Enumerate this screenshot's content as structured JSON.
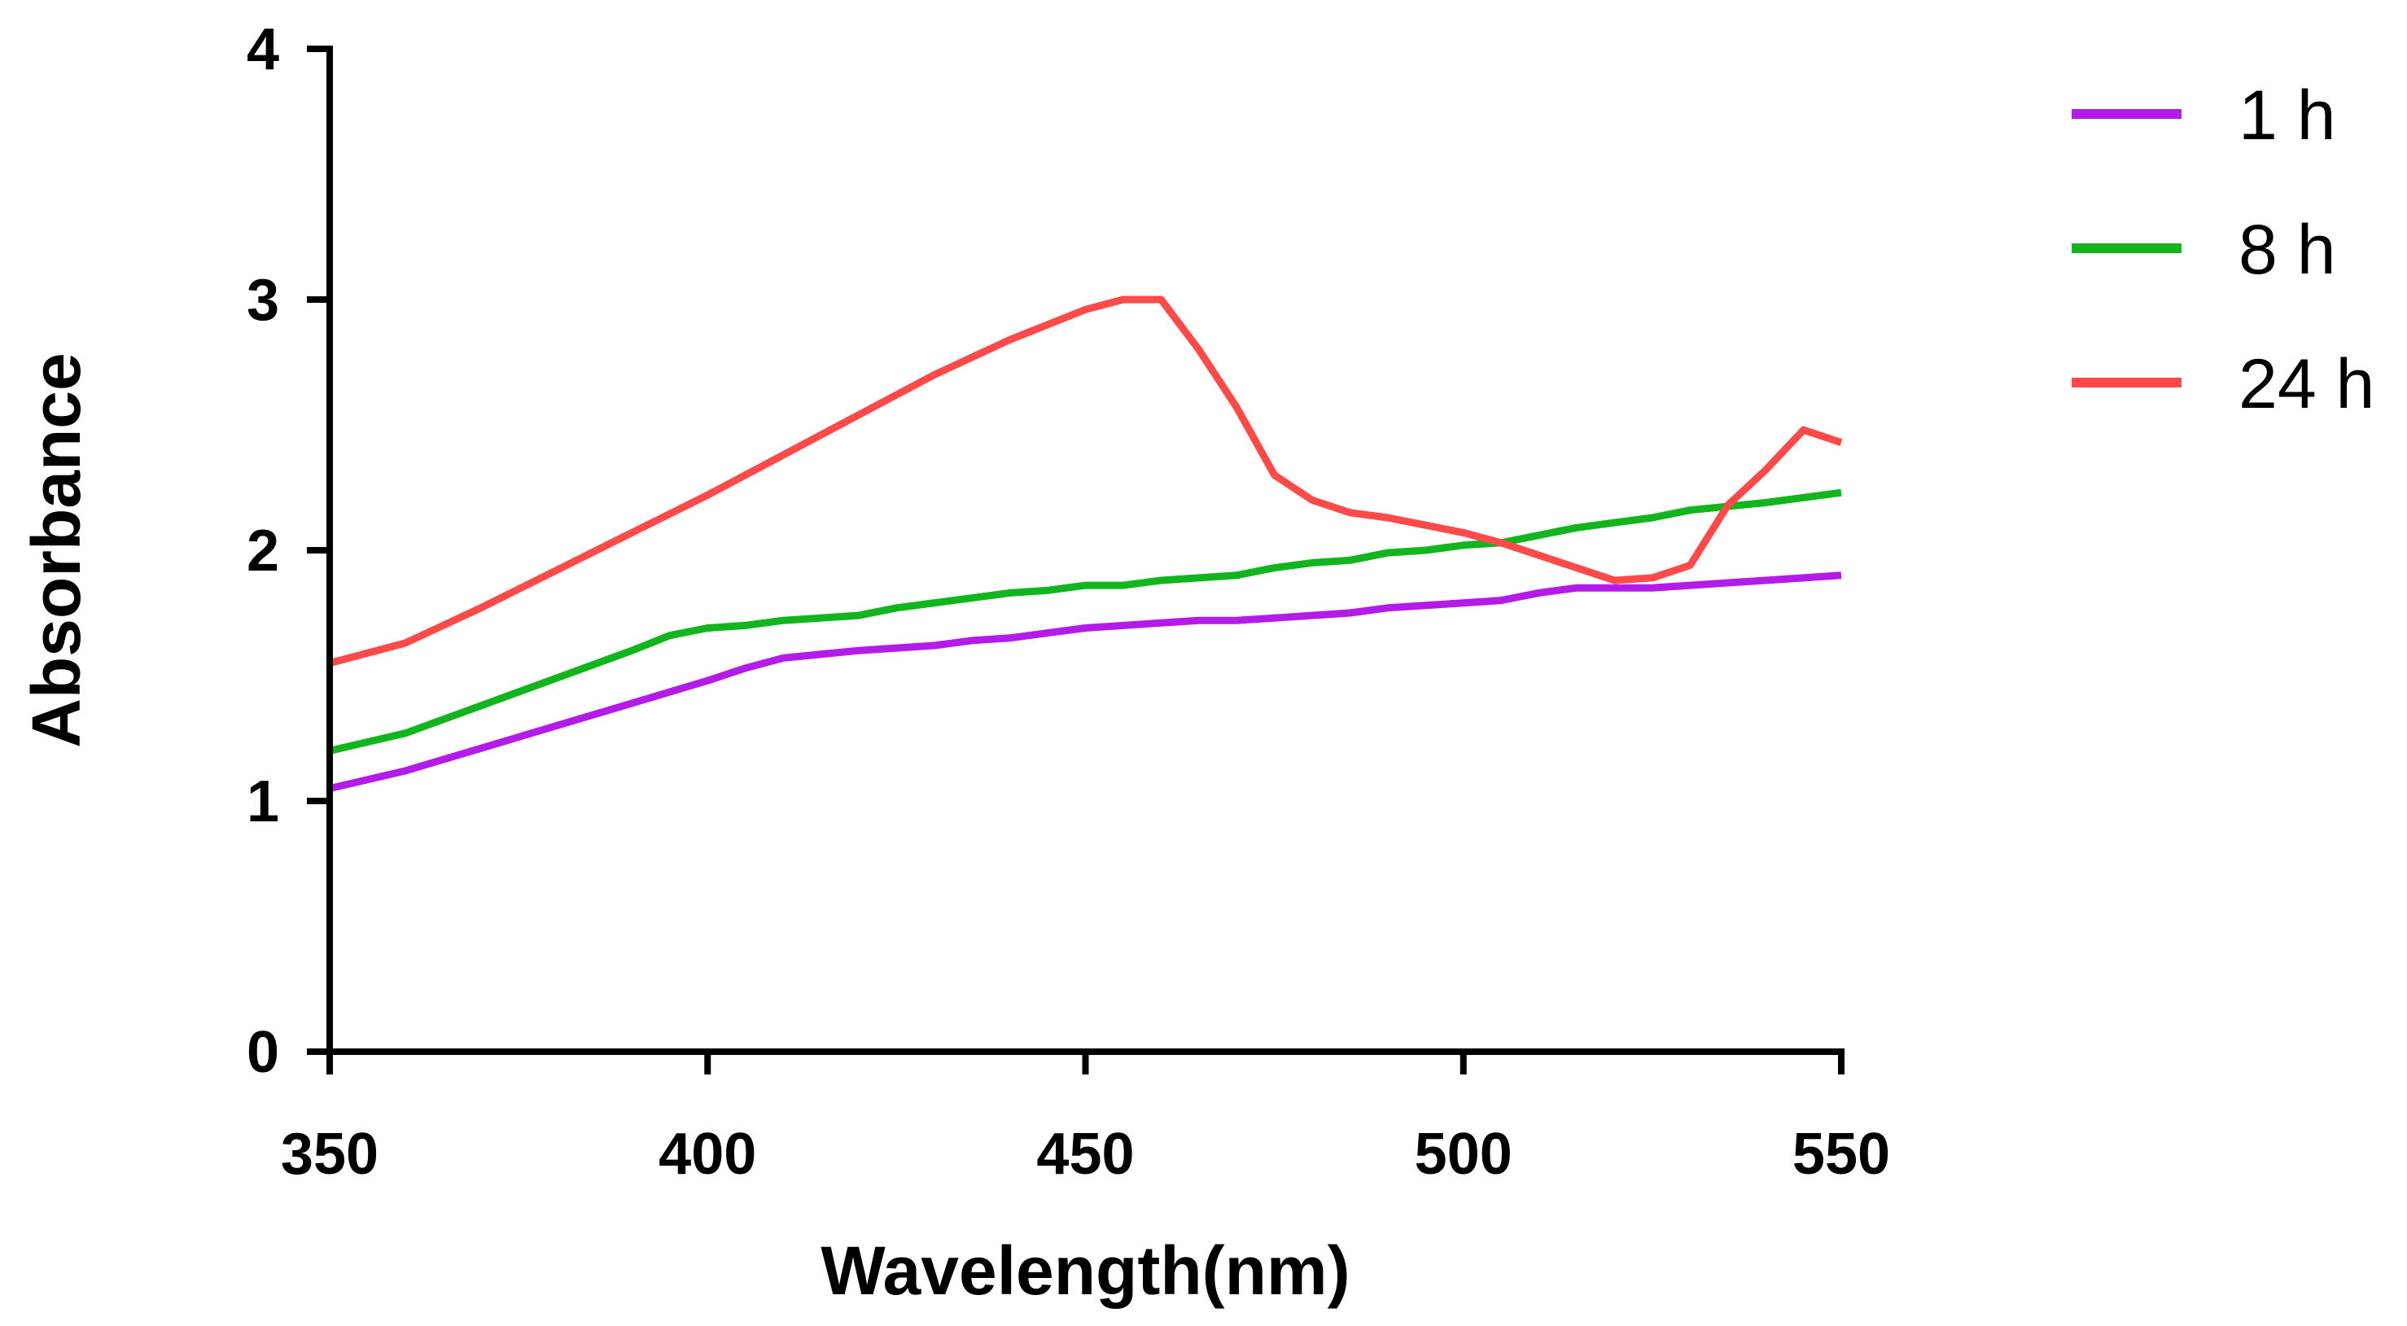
{
  "chart_data": {
    "type": "line",
    "title": "",
    "xlabel": "Wavelength(nm)",
    "ylabel": "Absorbance",
    "xlim": [
      350,
      550
    ],
    "ylim": [
      0,
      4
    ],
    "xticks": [
      350,
      400,
      450,
      500,
      550
    ],
    "yticks": [
      0,
      1,
      2,
      3,
      4
    ],
    "grid": false,
    "legend_position": "top-right",
    "series": [
      {
        "name": "1 h",
        "color": "#b31ce8",
        "x": [
          350,
          360,
          370,
          380,
          390,
          400,
          405,
          410,
          420,
          430,
          435,
          440,
          445,
          450,
          455,
          460,
          465,
          470,
          475,
          480,
          485,
          490,
          495,
          500,
          505,
          510,
          515,
          520,
          525,
          530,
          535,
          540,
          545,
          550
        ],
        "y": [
          1.05,
          1.12,
          1.21,
          1.3,
          1.39,
          1.48,
          1.53,
          1.57,
          1.6,
          1.62,
          1.64,
          1.65,
          1.67,
          1.69,
          1.7,
          1.71,
          1.72,
          1.72,
          1.73,
          1.74,
          1.75,
          1.77,
          1.78,
          1.79,
          1.8,
          1.83,
          1.85,
          1.85,
          1.85,
          1.86,
          1.87,
          1.88,
          1.89,
          1.9
        ]
      },
      {
        "name": "8 h",
        "color": "#12b51e",
        "x": [
          350,
          360,
          370,
          380,
          390,
          395,
          400,
          405,
          410,
          420,
          425,
          430,
          440,
          445,
          450,
          455,
          460,
          465,
          470,
          475,
          480,
          485,
          490,
          495,
          500,
          505,
          510,
          515,
          520,
          525,
          530,
          540,
          545,
          550
        ],
        "y": [
          1.2,
          1.27,
          1.38,
          1.49,
          1.6,
          1.66,
          1.69,
          1.7,
          1.72,
          1.74,
          1.77,
          1.79,
          1.83,
          1.84,
          1.86,
          1.86,
          1.88,
          1.89,
          1.9,
          1.93,
          1.95,
          1.96,
          1.99,
          2.0,
          2.02,
          2.03,
          2.06,
          2.09,
          2.11,
          2.13,
          2.16,
          2.19,
          2.21,
          2.23
        ]
      },
      {
        "name": "24 h",
        "color": "#ff4a4a",
        "x": [
          350,
          360,
          370,
          380,
          390,
          400,
          410,
          420,
          430,
          440,
          445,
          450,
          455,
          460,
          465,
          470,
          475,
          480,
          485,
          490,
          495,
          500,
          505,
          510,
          515,
          520,
          525,
          530,
          535,
          540,
          545,
          550
        ],
        "y": [
          1.55,
          1.63,
          1.77,
          1.92,
          2.07,
          2.22,
          2.38,
          2.54,
          2.7,
          2.84,
          2.9,
          2.96,
          3.0,
          3.0,
          2.8,
          2.57,
          2.3,
          2.2,
          2.15,
          2.13,
          2.1,
          2.07,
          2.03,
          1.98,
          1.93,
          1.88,
          1.89,
          1.94,
          2.18,
          2.32,
          2.48,
          2.43
        ]
      }
    ]
  }
}
